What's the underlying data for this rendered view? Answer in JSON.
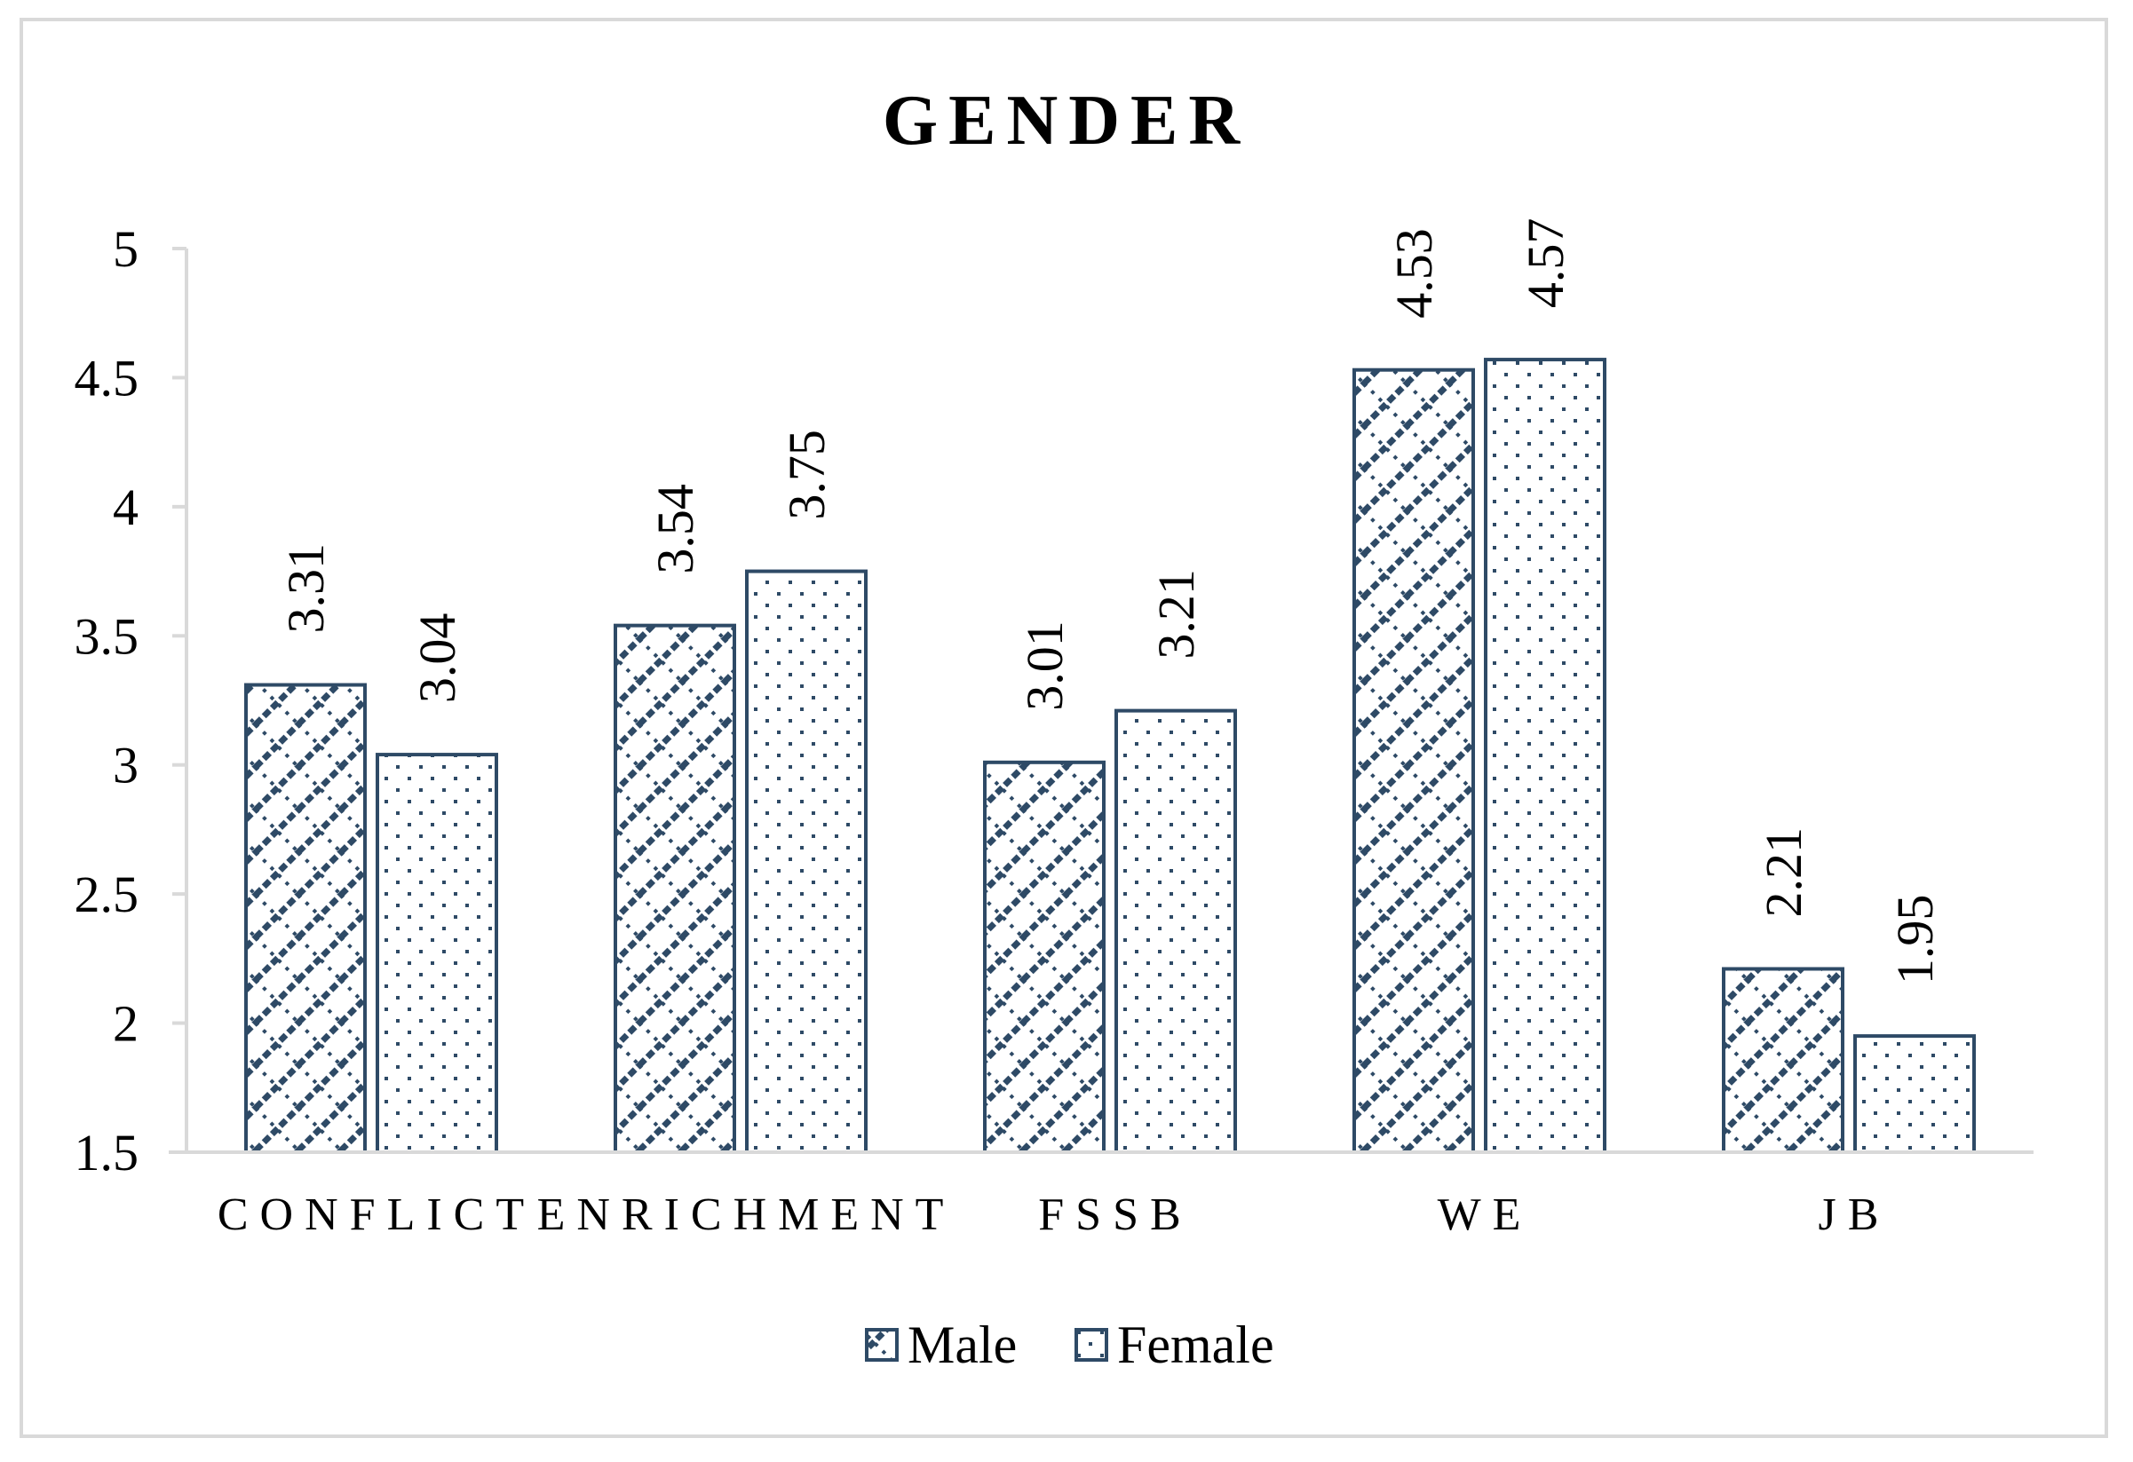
{
  "chart_data": {
    "type": "bar",
    "title": "GENDER",
    "xlabel": "",
    "ylabel": "",
    "categories": [
      "CONFLICT",
      "ENRICHMENT",
      "FSSB",
      "WE",
      "JB"
    ],
    "series": [
      {
        "name": "Male",
        "values": [
          3.31,
          3.54,
          3.01,
          4.53,
          2.21
        ],
        "pattern": "diagonal-hatch"
      },
      {
        "name": "Female",
        "values": [
          3.04,
          3.75,
          3.21,
          4.57,
          1.95
        ],
        "pattern": "dotted"
      }
    ],
    "ylim": [
      1.5,
      5
    ],
    "yticks": [
      "1.5",
      "2",
      "2.5",
      "3",
      "3.5",
      "4",
      "4.5",
      "5"
    ],
    "grid": false,
    "legend_position": "bottom",
    "colors": {
      "bar_outline": "#2e4a66",
      "axis": "#d9d9d9",
      "border": "#d9d9d9"
    }
  }
}
